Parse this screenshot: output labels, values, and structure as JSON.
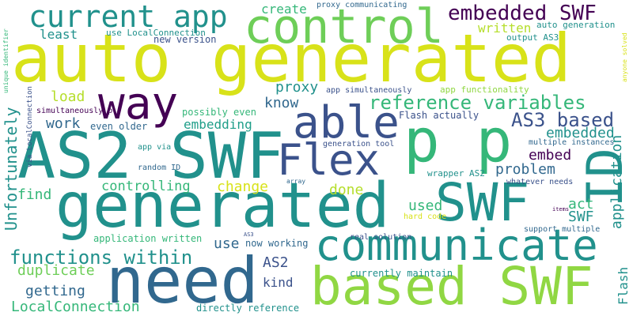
{
  "words": {
    "auto_generated": "auto generated",
    "generated": "generated",
    "based_swf": "based SWF",
    "as2_swf": "AS2 SWF",
    "need": "need",
    "communicate": "communicate",
    "control": "control",
    "p_p": "p p",
    "current_app": "current app",
    "way": "way",
    "able": "able",
    "flex": "Flex",
    "swf": "SWF",
    "id": "ID",
    "embedded_swf": "embedded SWF",
    "reference_variables": "reference variables",
    "functions_within": "functions within",
    "as3_based": "AS3 based",
    "application": "application",
    "unfortunately": "Unfortunately",
    "flash": "Flash",
    "localconnection": "LocalConnection",
    "controlling": "controlling",
    "getting": "getting",
    "duplicate": "duplicate",
    "embedding": "embedding",
    "proxy": "proxy",
    "know": "know",
    "load": "load",
    "work": "work",
    "problem": "problem",
    "embed": "embed",
    "embedded": "embedded",
    "act": "act",
    "swf_small": "SWF",
    "used": "used",
    "done": "done",
    "change": "change",
    "as2": "AS2",
    "kind": "kind",
    "use": "use",
    "find": "find",
    "least": "least",
    "create": "create",
    "written": "written",
    "possibly_even": "possibly even",
    "even_older": "even older",
    "flash_actually": "Flash actually",
    "currently_maintain": "currently maintain",
    "directly_reference": "directly reference",
    "now_working": "now working",
    "application_written": "application written",
    "use_localconnection": "use LocalConnection",
    "new_version": "new version",
    "proxy_communicating": "proxy communicating",
    "auto_generation": "auto generation",
    "output_as3": "output AS3",
    "app_functionality": "app functionality",
    "app_simultaneously": "app simultaneously",
    "generation_tool": "generation tool",
    "multiple_instances": "multiple instances",
    "wrapper_as2": "wrapper AS2",
    "whatever_needs": "whatever needs",
    "hard_code": "hard code",
    "support_multiple": "support multiple",
    "real_solution": "real solution",
    "random_id": "random ID",
    "app_via": "app via",
    "simultaneously_p": "simultaneously p",
    "via_localconnection": "via LocalConnection",
    "unique_identifier": "unique identifier",
    "anyone_solved": "anyone solved",
    "array": "array",
    "as3": "AS3",
    "items": "items"
  },
  "colors": {
    "dark_purple": "#440154",
    "indigo": "#3b528b",
    "blue": "#31688e",
    "teal": "#21918c",
    "green_teal": "#1f9e89",
    "green": "#35b779",
    "light_green": "#6ece58",
    "lime": "#90d743",
    "yellow_green": "#b5de2b",
    "yellow": "#d8e219"
  }
}
